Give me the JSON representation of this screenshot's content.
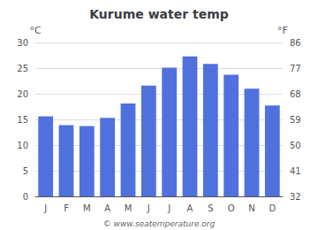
{
  "chart_data": {
    "type": "bar",
    "title": "Kurume water temp",
    "categories": [
      "J",
      "F",
      "M",
      "A",
      "M",
      "J",
      "J",
      "A",
      "S",
      "O",
      "N",
      "D"
    ],
    "values": [
      15.6,
      13.9,
      13.7,
      15.3,
      18.1,
      21.6,
      25.1,
      27.3,
      25.8,
      23.7,
      21.0,
      17.7
    ],
    "ylim": [
      0,
      30
    ],
    "yticks": [
      0,
      5,
      10,
      15,
      20,
      25,
      30
    ],
    "y2lim": [
      32,
      86
    ],
    "y2ticks": [
      32,
      41,
      50,
      59,
      68,
      77,
      86
    ],
    "ylabel": "°C",
    "y2label": "°F",
    "annotations": [
      "© www.seatemperature.org"
    ],
    "grid": true
  }
}
